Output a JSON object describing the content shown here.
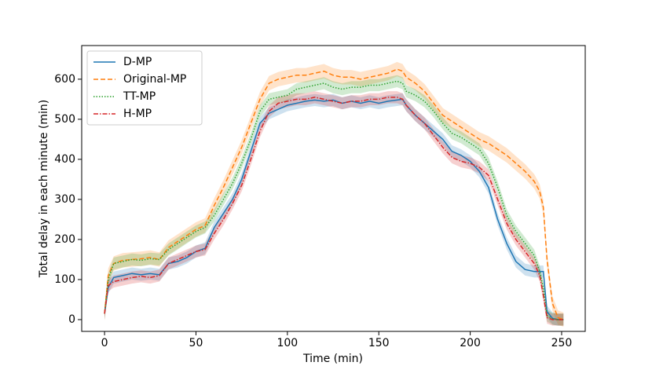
{
  "chart_data": {
    "type": "line",
    "xlabel": "Time (min)",
    "ylabel": "Total delay in each minute (min)",
    "x": [
      0,
      2,
      5,
      10,
      15,
      20,
      25,
      30,
      35,
      40,
      45,
      50,
      55,
      60,
      65,
      70,
      75,
      80,
      85,
      90,
      95,
      100,
      105,
      110,
      115,
      120,
      125,
      130,
      135,
      140,
      145,
      150,
      155,
      160,
      163,
      165,
      170,
      175,
      180,
      185,
      190,
      195,
      200,
      205,
      210,
      215,
      220,
      225,
      230,
      235,
      238,
      240,
      242,
      245,
      248,
      251
    ],
    "series": [
      {
        "name": "D-MP",
        "color": "#1f77b4",
        "dash": "solid",
        "band": 15,
        "values": [
          15,
          80,
          105,
          110,
          115,
          112,
          115,
          112,
          140,
          145,
          155,
          170,
          178,
          230,
          265,
          300,
          350,
          420,
          490,
          515,
          525,
          535,
          540,
          545,
          548,
          545,
          548,
          540,
          545,
          540,
          545,
          540,
          545,
          548,
          550,
          535,
          510,
          490,
          470,
          450,
          420,
          410,
          395,
          370,
          330,
          250,
          190,
          145,
          125,
          120,
          120,
          120,
          20,
          3,
          0,
          0
        ]
      },
      {
        "name": "Original-MP",
        "color": "#ff7f0e",
        "dash": "dashed",
        "band": 18,
        "values": [
          15,
          110,
          140,
          148,
          150,
          152,
          155,
          150,
          180,
          195,
          210,
          225,
          235,
          285,
          330,
          380,
          430,
          490,
          550,
          590,
          600,
          605,
          610,
          610,
          615,
          620,
          610,
          605,
          605,
          600,
          605,
          610,
          615,
          625,
          620,
          605,
          590,
          570,
          540,
          510,
          495,
          480,
          465,
          450,
          440,
          425,
          410,
          390,
          370,
          345,
          320,
          280,
          150,
          40,
          5,
          0
        ]
      },
      {
        "name": "TT-MP",
        "color": "#2ca02c",
        "dash": "dotted",
        "band": 15,
        "values": [
          15,
          100,
          140,
          145,
          150,
          148,
          152,
          150,
          175,
          190,
          205,
          220,
          230,
          260,
          300,
          340,
          390,
          450,
          520,
          550,
          555,
          560,
          575,
          580,
          585,
          590,
          580,
          575,
          580,
          580,
          585,
          585,
          590,
          595,
          590,
          570,
          560,
          545,
          520,
          490,
          465,
          455,
          440,
          425,
          390,
          330,
          260,
          220,
          190,
          160,
          120,
          80,
          10,
          2,
          0,
          0
        ]
      },
      {
        "name": "H-MP",
        "color": "#d62728",
        "dash": "dashdot",
        "band": 15,
        "values": [
          15,
          85,
          95,
          100,
          105,
          108,
          105,
          110,
          140,
          150,
          160,
          170,
          175,
          215,
          250,
          290,
          335,
          400,
          470,
          520,
          540,
          545,
          550,
          550,
          555,
          550,
          545,
          540,
          545,
          545,
          550,
          550,
          555,
          555,
          550,
          535,
          510,
          490,
          460,
          430,
          405,
          395,
          390,
          380,
          360,
          300,
          240,
          200,
          170,
          140,
          110,
          60,
          5,
          0,
          0,
          0
        ]
      }
    ],
    "xlim": [
      -12.5,
      262.9
    ],
    "ylim": [
      -29.4,
      684
    ],
    "xticks": [
      0,
      50,
      100,
      150,
      200,
      250
    ],
    "yticks": [
      0,
      100,
      200,
      300,
      400,
      500,
      600
    ],
    "legend": "upper left"
  }
}
